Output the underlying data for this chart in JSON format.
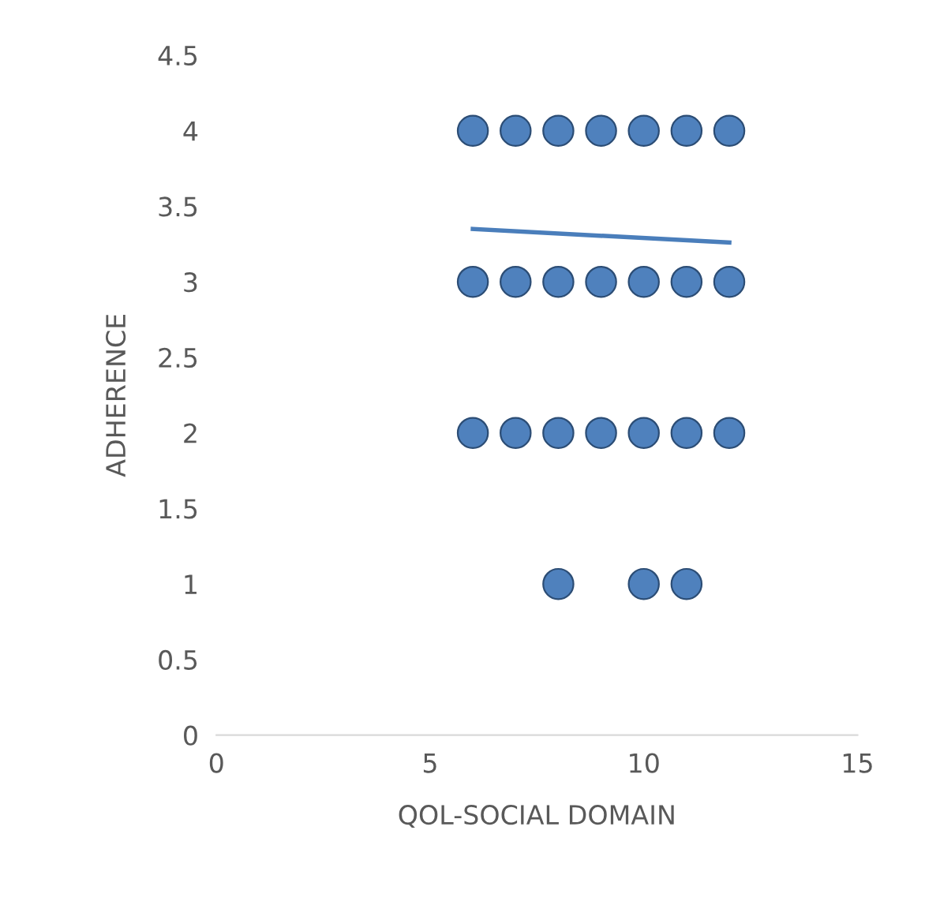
{
  "chart_data": {
    "type": "scatter",
    "xlabel": "QOL-SOCIAL DOMAIN",
    "ylabel": "ADHERENCE",
    "series": [
      {
        "marker": "circle",
        "color": "#4f81bd",
        "x": [
          6,
          7,
          8,
          9,
          10,
          11,
          12,
          6,
          7,
          8,
          9,
          10,
          11,
          12,
          6,
          7,
          8,
          9,
          10,
          11,
          12,
          8,
          10,
          11
        ],
        "values": [
          4,
          4,
          4,
          4,
          4,
          4,
          4,
          3,
          3,
          3,
          3,
          3,
          3,
          3,
          2,
          2,
          2,
          2,
          2,
          2,
          2,
          1,
          1,
          1
        ]
      },
      {
        "type": "line",
        "marker": "none",
        "color": "#4a7ebb",
        "x": [
          6,
          12
        ],
        "values": [
          3.35,
          3.26
        ]
      }
    ],
    "xlim": [
      0,
      15
    ],
    "xticks": [
      0,
      5,
      10,
      15
    ],
    "ylim": [
      0,
      4.5
    ],
    "yticks": [
      0,
      0.5,
      1,
      1.5,
      2,
      2.5,
      3,
      3.5,
      4,
      4.5
    ],
    "grid": false
  }
}
